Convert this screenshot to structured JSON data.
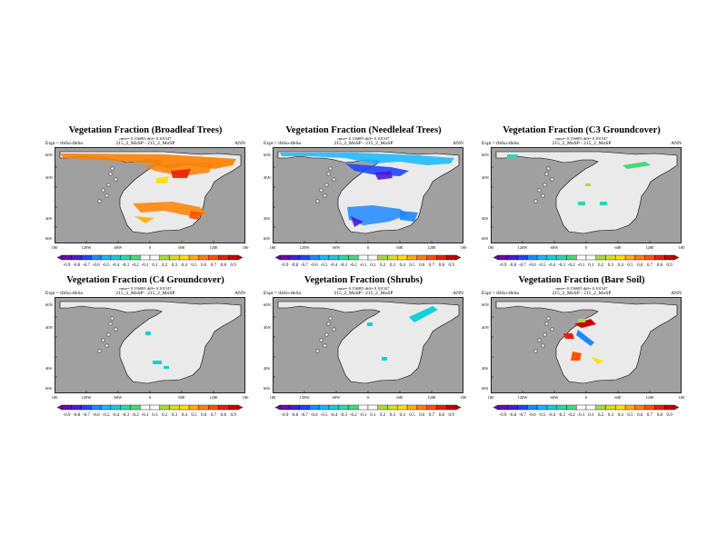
{
  "colorbar": {
    "labels": [
      "-0.9",
      "-0.8",
      "-0.7",
      "-0.6",
      "-0.5",
      "-0.4",
      "-0.3",
      "-0.2",
      "-0.1",
      "0.1",
      "0.2",
      "0.3",
      "0.4",
      "0.5",
      "0.6",
      "0.7",
      "0.8",
      "0.9"
    ],
    "colors": [
      "#6a0dad",
      "#4b1bd6",
      "#1f45ff",
      "#1e88ff",
      "#14b8ff",
      "#10d0d8",
      "#28d8b0",
      "#48d878",
      "#ffffff",
      "#ffffff",
      "#a8dc3c",
      "#d8e020",
      "#ffe000",
      "#ffb000",
      "#ff8000",
      "#ff5000",
      "#e82000",
      "#c80000"
    ]
  },
  "axes": {
    "x_ticks": [
      "180",
      "120W",
      "60W",
      "0",
      "60E",
      "120E",
      "180"
    ],
    "y_ticks": [
      "60N",
      "40N",
      "40S",
      "60S"
    ]
  },
  "panels": [
    {
      "title": "Vegetation Fraction (Broadleaf Trees)",
      "rmse": "rmse= 0.156005 diff= 0.101547",
      "expt": "Expt = tfeSo-tfeSo",
      "name": "215_2_MoSP - 215_2_MoSP",
      "period": "ANN"
    },
    {
      "title": "Vegetation Fraction (Needleleaf Trees)",
      "rmse": "rmse= 0.156005 diff= 0.101547",
      "expt": "Expt = tfeSo-tfeSo",
      "name": "215_2_MoSP - 215_2_MoSP",
      "period": "ANN"
    },
    {
      "title": "Vegetation Fraction (C3 Groundcover)",
      "rmse": "rmse= 0.156005 diff= 0.101547",
      "expt": "Expt = tfeSo-tfeSo",
      "name": "215_2_MoSP - 215_2_MoSP",
      "period": "ANN"
    },
    {
      "title": "Vegetation Fraction (C4 Groundcover)",
      "rmse": "rmse= 0.156005 diff= 0.101547",
      "expt": "Expt = tfeSo-tfeSo",
      "name": "215_2_MoSP - 215_2_MoSP",
      "period": "ANN"
    },
    {
      "title": "Vegetation Fraction (Shrubs)",
      "rmse": "rmse= 0.156005 diff= 0.101547",
      "expt": "Expt = tfeSo-tfeSo",
      "name": "215_2_MoSP - 215_2_MoSP",
      "period": "ANN"
    },
    {
      "title": "Vegetation Fraction (Bare Soil)",
      "rmse": "rmse= 0.156005 diff= 0.101547",
      "expt": "Expt = tfeSo-tfeSo",
      "name": "215_2_MoSP - 215_2_MoSP",
      "period": "ANN"
    }
  ]
}
